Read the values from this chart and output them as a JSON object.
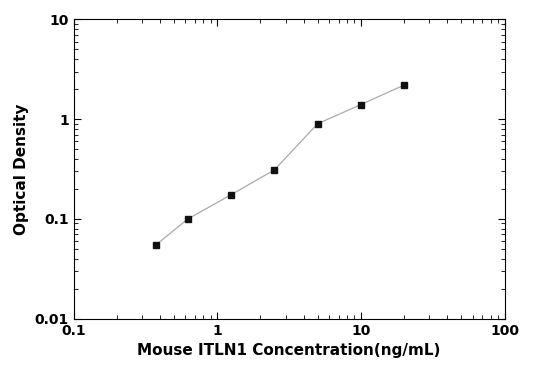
{
  "x": [
    0.375,
    0.625,
    1.25,
    2.5,
    5.0,
    10.0,
    20.0
  ],
  "y": [
    0.055,
    0.1,
    0.175,
    0.31,
    0.9,
    1.4,
    2.2
  ],
  "xlabel": "Mouse ITLN1 Concentration(ng/mL)",
  "ylabel": "Optical Density",
  "xlim_log": [
    0.1,
    100
  ],
  "ylim_log": [
    0.01,
    10
  ],
  "yticks": [
    0.01,
    0.1,
    1,
    10
  ],
  "ytick_labels": [
    "0.01",
    "0.1",
    "1",
    "10"
  ],
  "xticks": [
    0.1,
    1,
    10,
    100
  ],
  "xtick_labels": [
    "0.1",
    "1",
    "10",
    "100"
  ],
  "line_color": "#aaaaaa",
  "marker_color": "#111111",
  "marker": "s",
  "marker_size": 5,
  "line_width": 0.9,
  "background_color": "#ffffff",
  "xlabel_fontsize": 11,
  "ylabel_fontsize": 11,
  "tick_fontsize": 10,
  "font_weight": "bold"
}
